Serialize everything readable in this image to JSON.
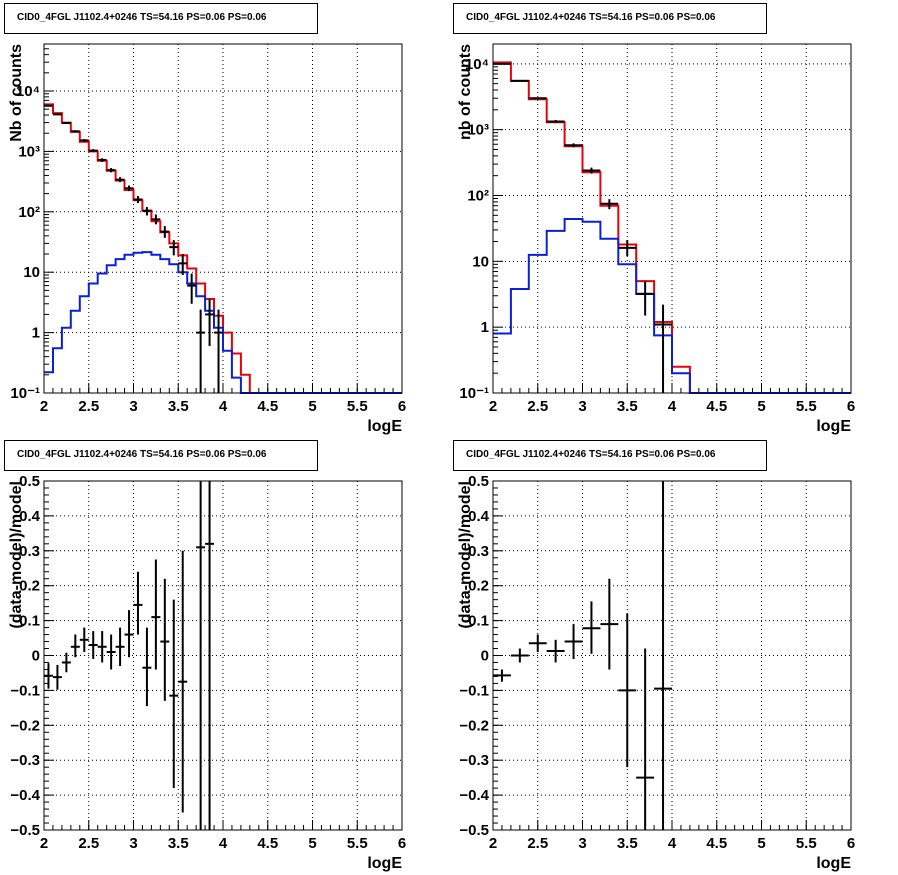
{
  "colors": {
    "data": "#000000",
    "total_model": "#e8000b",
    "source_model": "#0a1fd8",
    "grid": "#000000",
    "frame": "#000000"
  },
  "chart_data": [
    {
      "type": "histogram",
      "title": "CID0_4FGL J1102.4+0246 TS=54.16 PS=0.06 PS=0.06",
      "xlabel": "logE",
      "ylabel": "Nb of counts",
      "xlim": [
        2,
        6
      ],
      "ylim": [
        0.1,
        60000
      ],
      "log_y": true,
      "grid": true,
      "x_ticks": [
        "2",
        "2.5",
        "3",
        "3.5",
        "4",
        "4.5",
        "5",
        "5.5",
        "6"
      ],
      "y_ticks": [
        {
          "value": 0.1,
          "label": "10⁻¹"
        },
        {
          "value": 1,
          "label": "1"
        },
        {
          "value": 10,
          "label": "10"
        },
        {
          "value": 100,
          "label": "10²"
        },
        {
          "value": 1000,
          "label": "10³"
        },
        {
          "value": 10000,
          "label": "10⁴"
        }
      ],
      "bin_edges": [
        2.0,
        2.1,
        2.2,
        2.3,
        2.4,
        2.5,
        2.6,
        2.7,
        2.8,
        2.9,
        3.0,
        3.1,
        3.2,
        3.3,
        3.4,
        3.5,
        3.6,
        3.7,
        3.8,
        3.9,
        4.0,
        4.1,
        4.2,
        4.3,
        4.4,
        4.5,
        4.6,
        4.7,
        4.8,
        4.9,
        5.0,
        5.1,
        5.2,
        5.3,
        5.4,
        5.5,
        5.6,
        5.7,
        5.8,
        5.9,
        6.0
      ],
      "series": [
        {
          "name": "",
          "role": "total_model",
          "values": [
            6000,
            4300,
            3000,
            2100,
            1450,
            1000,
            700,
            480,
            330,
            230,
            155,
            105,
            70,
            46,
            30,
            19,
            11.5,
            6.5,
            3.6,
            1.9,
            1.0,
            0.45,
            0.2,
            0.1,
            0.1,
            0.1,
            0.1,
            0.1,
            0.1,
            0.1,
            0.1,
            0.1,
            0.1,
            0.1,
            0.1,
            0.1,
            0.1,
            0.1,
            0.1,
            0.1
          ]
        },
        {
          "name": "",
          "role": "source_model",
          "values": [
            0.22,
            0.55,
            1.2,
            2.3,
            4.0,
            6.5,
            9.5,
            13,
            16.5,
            19.5,
            21,
            21.5,
            19.5,
            16.5,
            13.5,
            10,
            6.5,
            4.0,
            2.3,
            1.2,
            0.5,
            0.18,
            0.1,
            0.1,
            0.1,
            0.1,
            0.1,
            0.1,
            0.1,
            0.1,
            0.1,
            0.1,
            0.1,
            0.1,
            0.1,
            0.1,
            0.1,
            0.1,
            0.1,
            0.1
          ]
        }
      ],
      "points": [
        {
          "x": 2.05,
          "y": 5700,
          "ylo": 5550,
          "yhi": 5850
        },
        {
          "x": 2.15,
          "y": 4100,
          "ylo": 3970,
          "yhi": 4230
        },
        {
          "x": 2.25,
          "y": 2950,
          "ylo": 2840,
          "yhi": 3060
        },
        {
          "x": 2.35,
          "y": 2150,
          "ylo": 2060,
          "yhi": 2240
        },
        {
          "x": 2.45,
          "y": 1520,
          "ylo": 1440,
          "yhi": 1600
        },
        {
          "x": 2.55,
          "y": 1030,
          "ylo": 970,
          "yhi": 1090
        },
        {
          "x": 2.65,
          "y": 720,
          "ylo": 670,
          "yhi": 770
        },
        {
          "x": 2.75,
          "y": 490,
          "ylo": 450,
          "yhi": 530
        },
        {
          "x": 2.85,
          "y": 340,
          "ylo": 310,
          "yhi": 375
        },
        {
          "x": 2.95,
          "y": 245,
          "ylo": 220,
          "yhi": 272
        },
        {
          "x": 3.05,
          "y": 160,
          "ylo": 140,
          "yhi": 182
        },
        {
          "x": 3.15,
          "y": 103,
          "ylo": 87,
          "yhi": 120
        },
        {
          "x": 3.25,
          "y": 75,
          "ylo": 62,
          "yhi": 90
        },
        {
          "x": 3.35,
          "y": 47,
          "ylo": 37,
          "yhi": 58
        },
        {
          "x": 3.45,
          "y": 26,
          "ylo": 19,
          "yhi": 34
        },
        {
          "x": 3.55,
          "y": 14,
          "ylo": 9,
          "yhi": 20
        },
        {
          "x": 3.65,
          "y": 6,
          "ylo": 3,
          "yhi": 9.5
        },
        {
          "x": 3.75,
          "y": 1.0,
          "ylo": 0.1,
          "yhi": 2.4
        },
        {
          "x": 3.85,
          "y": 2.0,
          "ylo": 0.6,
          "yhi": 3.6
        },
        {
          "x": 3.95,
          "y": 1.0,
          "ylo": 0.1,
          "yhi": 2.4
        }
      ]
    },
    {
      "type": "histogram",
      "title": "CID0_4FGL J1102.4+0246 TS=54.16 PS=0.06 PS=0.06",
      "xlabel": "logE",
      "ylabel": "nb of counts",
      "xlim": [
        2,
        6
      ],
      "ylim": [
        0.1,
        20000
      ],
      "log_y": true,
      "grid": true,
      "x_ticks": [
        "2",
        "2.5",
        "3",
        "3.5",
        "4",
        "4.5",
        "5",
        "5.5",
        "6"
      ],
      "y_ticks": [
        {
          "value": 0.1,
          "label": "10⁻¹"
        },
        {
          "value": 1,
          "label": "1"
        },
        {
          "value": 10,
          "label": "10"
        },
        {
          "value": 100,
          "label": "10²"
        },
        {
          "value": 1000,
          "label": "10³"
        },
        {
          "value": 10000,
          "label": "10⁴"
        }
      ],
      "bin_edges": [
        2.0,
        2.2,
        2.4,
        2.6,
        2.8,
        3.0,
        3.2,
        3.4,
        3.6,
        3.8,
        4.0,
        4.2,
        4.4,
        4.6,
        4.8,
        5.0,
        5.2,
        5.4,
        5.6,
        5.8,
        6.0
      ],
      "series": [
        {
          "name": "",
          "role": "total_model",
          "values": [
            10500,
            5500,
            2900,
            1300,
            560,
            225,
            70,
            18,
            5,
            1.2,
            0.25,
            0.1,
            0.1,
            0.1,
            0.1,
            0.1,
            0.1,
            0.1,
            0.1,
            0.1
          ]
        },
        {
          "name": "",
          "role": "source_model",
          "values": [
            0.8,
            3.8,
            12.5,
            29,
            44,
            40,
            22,
            9,
            3.2,
            0.75,
            0.2,
            0.1,
            0.1,
            0.1,
            0.1,
            0.1,
            0.1,
            0.1,
            0.1,
            0.1
          ]
        }
      ],
      "points": [
        {
          "x": 2.1,
          "y": 10000,
          "ylo": 9800,
          "yhi": 10200
        },
        {
          "x": 2.3,
          "y": 5500,
          "ylo": 5350,
          "yhi": 5650
        },
        {
          "x": 2.5,
          "y": 3000,
          "ylo": 2900,
          "yhi": 3100
        },
        {
          "x": 2.7,
          "y": 1330,
          "ylo": 1260,
          "yhi": 1400
        },
        {
          "x": 2.9,
          "y": 580,
          "ylo": 540,
          "yhi": 620
        },
        {
          "x": 3.1,
          "y": 240,
          "ylo": 215,
          "yhi": 265
        },
        {
          "x": 3.3,
          "y": 75,
          "ylo": 62,
          "yhi": 88
        },
        {
          "x": 3.5,
          "y": 16,
          "ylo": 12,
          "yhi": 21
        },
        {
          "x": 3.7,
          "y": 3.2,
          "ylo": 1.5,
          "yhi": 5
        },
        {
          "x": 3.9,
          "y": 1.1,
          "ylo": 0.1,
          "yhi": 2.2
        }
      ]
    },
    {
      "type": "scatter",
      "title": "CID0_4FGL J1102.4+0246 TS=54.16 PS=0.06 PS=0.06",
      "xlabel": "logE",
      "ylabel": "(data-model)/model",
      "xlim": [
        2,
        6
      ],
      "ylim": [
        -0.5,
        0.5
      ],
      "log_y": false,
      "grid": true,
      "x_ticks": [
        "2",
        "2.5",
        "3",
        "3.5",
        "4",
        "4.5",
        "5",
        "5.5",
        "6"
      ],
      "y_ticks": [
        {
          "value": -0.5,
          "label": "−0.5"
        },
        {
          "value": -0.4,
          "label": "−0.4"
        },
        {
          "value": -0.3,
          "label": "−0.3"
        },
        {
          "value": -0.2,
          "label": "−0.2"
        },
        {
          "value": -0.1,
          "label": "−0.1"
        },
        {
          "value": 0,
          "label": "0"
        },
        {
          "value": 0.1,
          "label": "0.1"
        },
        {
          "value": 0.2,
          "label": "0.2"
        },
        {
          "value": 0.3,
          "label": "0.3"
        },
        {
          "value": 0.4,
          "label": "0.4"
        },
        {
          "value": 0.5,
          "label": "0.5"
        }
      ],
      "xerr": 0.05,
      "points": [
        {
          "x": 2.05,
          "y": -0.058,
          "ylo": -0.095,
          "yhi": -0.022
        },
        {
          "x": 2.15,
          "y": -0.062,
          "ylo": -0.098,
          "yhi": -0.027
        },
        {
          "x": 2.25,
          "y": -0.02,
          "ylo": -0.048,
          "yhi": 0.008
        },
        {
          "x": 2.35,
          "y": 0.025,
          "ylo": -0.005,
          "yhi": 0.06
        },
        {
          "x": 2.45,
          "y": 0.045,
          "ylo": 0.01,
          "yhi": 0.08
        },
        {
          "x": 2.55,
          "y": 0.03,
          "ylo": -0.01,
          "yhi": 0.07
        },
        {
          "x": 2.65,
          "y": 0.025,
          "ylo": -0.02,
          "yhi": 0.07
        },
        {
          "x": 2.75,
          "y": 0.01,
          "ylo": -0.04,
          "yhi": 0.06
        },
        {
          "x": 2.85,
          "y": 0.025,
          "ylo": -0.03,
          "yhi": 0.08
        },
        {
          "x": 2.95,
          "y": 0.06,
          "ylo": -0.005,
          "yhi": 0.13
        },
        {
          "x": 3.05,
          "y": 0.145,
          "ylo": 0.06,
          "yhi": 0.24
        },
        {
          "x": 3.15,
          "y": -0.035,
          "ylo": -0.145,
          "yhi": 0.08
        },
        {
          "x": 3.25,
          "y": 0.11,
          "ylo": -0.04,
          "yhi": 0.275
        },
        {
          "x": 3.35,
          "y": 0.04,
          "ylo": -0.13,
          "yhi": 0.22
        },
        {
          "x": 3.45,
          "y": -0.115,
          "ylo": -0.38,
          "yhi": 0.16
        },
        {
          "x": 3.55,
          "y": -0.075,
          "ylo": -0.45,
          "yhi": 0.3
        },
        {
          "x": 3.75,
          "y": 0.31,
          "ylo": -0.5,
          "yhi": 0.5
        },
        {
          "x": 3.85,
          "y": 0.32,
          "ylo": -0.5,
          "yhi": 0.5
        }
      ]
    },
    {
      "type": "scatter",
      "title": "CID0_4FGL J1102.4+0246 TS=54.16 PS=0.06 PS=0.06",
      "xlabel": "logE",
      "ylabel": "(data-model)/model",
      "xlim": [
        2,
        6
      ],
      "ylim": [
        -0.5,
        0.5
      ],
      "log_y": false,
      "grid": true,
      "x_ticks": [
        "2",
        "2.5",
        "3",
        "3.5",
        "4",
        "4.5",
        "5",
        "5.5",
        "6"
      ],
      "y_ticks": [
        {
          "value": -0.5,
          "label": "−0.5"
        },
        {
          "value": -0.4,
          "label": "−0.4"
        },
        {
          "value": -0.3,
          "label": "−0.3"
        },
        {
          "value": -0.2,
          "label": "−0.2"
        },
        {
          "value": -0.1,
          "label": "−0.1"
        },
        {
          "value": 0,
          "label": "0"
        },
        {
          "value": 0.1,
          "label": "0.1"
        },
        {
          "value": 0.2,
          "label": "0.2"
        },
        {
          "value": 0.3,
          "label": "0.3"
        },
        {
          "value": 0.4,
          "label": "0.4"
        },
        {
          "value": 0.5,
          "label": "0.5"
        }
      ],
      "xerr": 0.1,
      "points": [
        {
          "x": 2.1,
          "y": -0.057,
          "ylo": -0.075,
          "yhi": -0.04
        },
        {
          "x": 2.3,
          "y": 0.0,
          "ylo": -0.02,
          "yhi": 0.02
        },
        {
          "x": 2.5,
          "y": 0.035,
          "ylo": 0.01,
          "yhi": 0.06
        },
        {
          "x": 2.7,
          "y": 0.013,
          "ylo": -0.02,
          "yhi": 0.045
        },
        {
          "x": 2.9,
          "y": 0.04,
          "ylo": -0.01,
          "yhi": 0.09
        },
        {
          "x": 3.1,
          "y": 0.078,
          "ylo": 0.005,
          "yhi": 0.155
        },
        {
          "x": 3.3,
          "y": 0.09,
          "ylo": -0.04,
          "yhi": 0.22
        },
        {
          "x": 3.5,
          "y": -0.1,
          "ylo": -0.32,
          "yhi": 0.12
        },
        {
          "x": 3.7,
          "y": -0.35,
          "ylo": -0.5,
          "yhi": 0.02
        },
        {
          "x": 3.9,
          "y": -0.095,
          "ylo": -0.5,
          "yhi": 0.5
        }
      ]
    }
  ]
}
